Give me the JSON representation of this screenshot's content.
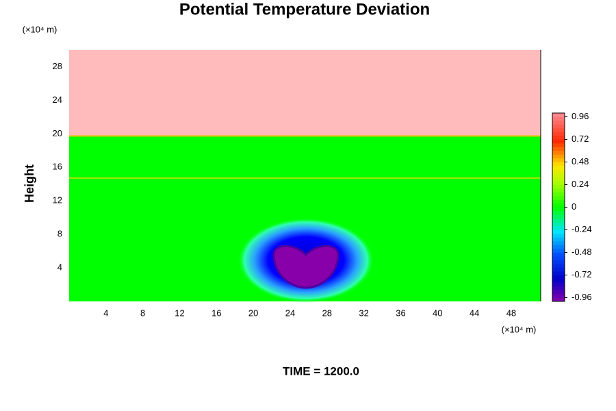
{
  "chart_data": {
    "type": "contour",
    "title": "Potential Temperature Deviation",
    "ylabel": "Height",
    "x_unit": "(×10⁴ m)",
    "y_unit": "(×10⁴ m)",
    "annotation": "TIME = 1200.0",
    "xlim": [
      0,
      51.2
    ],
    "xticks": [
      4,
      8,
      12,
      16,
      20,
      24,
      28,
      32,
      36,
      40,
      44,
      48
    ],
    "ylim": [
      0,
      30
    ],
    "yticks": [
      4,
      8,
      12,
      16,
      20,
      24,
      28
    ],
    "zlim": [
      -1,
      1
    ],
    "zticks": [
      0.96,
      0.72,
      0.48,
      0.24,
      0,
      -0.24,
      -0.48,
      -0.72,
      -0.96
    ]
  }
}
